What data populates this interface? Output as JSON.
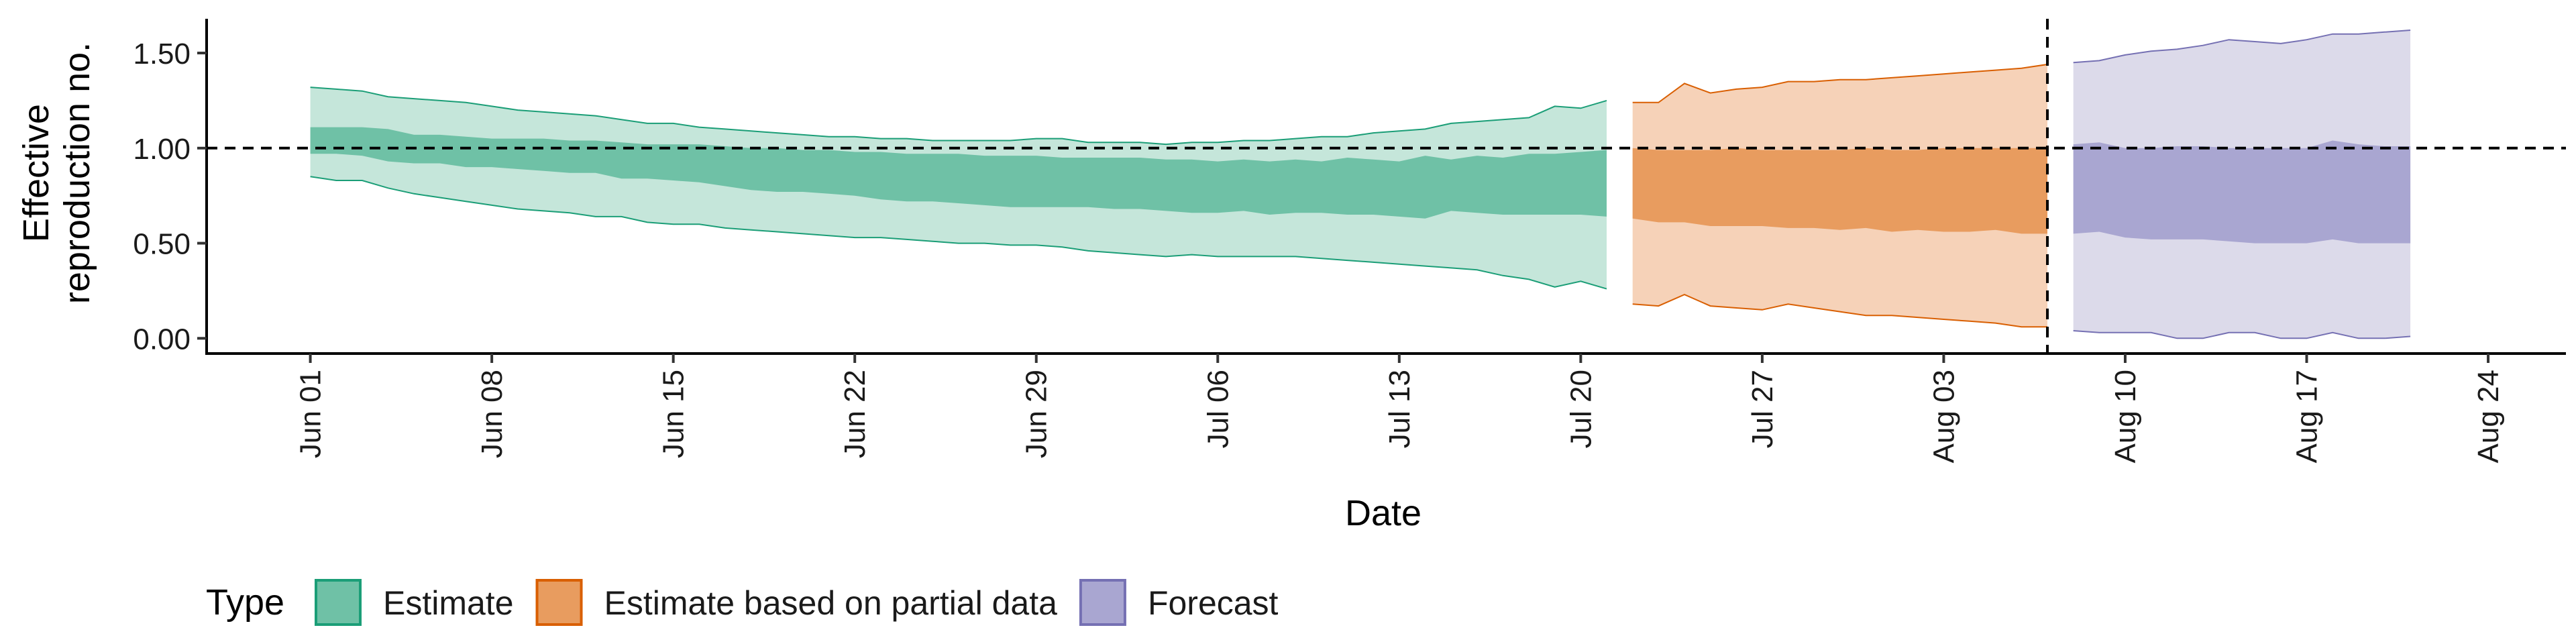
{
  "chart_data": {
    "type": "area",
    "xlabel": "Date",
    "ylabel_line1": "Effective",
    "ylabel_line2": "reproduction no.",
    "y_ticks": [
      "0.00",
      "0.50",
      "1.00",
      "1.50"
    ],
    "y_tick_values": [
      0,
      0.5,
      1.0,
      1.5
    ],
    "ylim": [
      -0.08,
      1.68
    ],
    "xlim": [
      "2020-05-28",
      "2020-08-27"
    ],
    "x_ticks": [
      "Jun 01",
      "Jun 08",
      "Jun 15",
      "Jun 22",
      "Jun 29",
      "Jul 06",
      "Jul 13",
      "Jul 20",
      "Jul 27",
      "Aug 03",
      "Aug 10",
      "Aug 17",
      "Aug 24"
    ],
    "x_tick_dates": [
      "2020-06-01",
      "2020-06-08",
      "2020-06-15",
      "2020-06-22",
      "2020-06-29",
      "2020-07-06",
      "2020-07-13",
      "2020-07-20",
      "2020-07-27",
      "2020-08-03",
      "2020-08-10",
      "2020-08-17",
      "2020-08-24"
    ],
    "reference_hline": 1.0,
    "reference_vline": "2020-08-07",
    "grid": false,
    "legend_placement": "bottom-left",
    "legend_title": "Type",
    "series": [
      {
        "name": "Estimate",
        "color": "#1b9e77",
        "fill_inner": "#6fc1a6",
        "fill_outer": "#c5e6da",
        "x": [
          "2020-06-01",
          "2020-06-02",
          "2020-06-03",
          "2020-06-04",
          "2020-06-05",
          "2020-06-06",
          "2020-06-07",
          "2020-06-08",
          "2020-06-09",
          "2020-06-10",
          "2020-06-11",
          "2020-06-12",
          "2020-06-13",
          "2020-06-14",
          "2020-06-15",
          "2020-06-16",
          "2020-06-17",
          "2020-06-18",
          "2020-06-19",
          "2020-06-20",
          "2020-06-21",
          "2020-06-22",
          "2020-06-23",
          "2020-06-24",
          "2020-06-25",
          "2020-06-26",
          "2020-06-27",
          "2020-06-28",
          "2020-06-29",
          "2020-06-30",
          "2020-07-01",
          "2020-07-02",
          "2020-07-03",
          "2020-07-04",
          "2020-07-05",
          "2020-07-06",
          "2020-07-07",
          "2020-07-08",
          "2020-07-09",
          "2020-07-10",
          "2020-07-11",
          "2020-07-12",
          "2020-07-13",
          "2020-07-14",
          "2020-07-15",
          "2020-07-16",
          "2020-07-17",
          "2020-07-18",
          "2020-07-19",
          "2020-07-20",
          "2020-07-21"
        ],
        "lower90": [
          0.85,
          0.83,
          0.83,
          0.79,
          0.76,
          0.74,
          0.72,
          0.7,
          0.68,
          0.67,
          0.66,
          0.64,
          0.64,
          0.61,
          0.6,
          0.6,
          0.58,
          0.57,
          0.56,
          0.55,
          0.54,
          0.53,
          0.53,
          0.52,
          0.51,
          0.5,
          0.5,
          0.49,
          0.49,
          0.48,
          0.46,
          0.45,
          0.44,
          0.43,
          0.44,
          0.43,
          0.43,
          0.43,
          0.43,
          0.42,
          0.41,
          0.4,
          0.39,
          0.38,
          0.37,
          0.36,
          0.33,
          0.31,
          0.27,
          0.3,
          0.26
        ],
        "lower50": [
          0.97,
          0.97,
          0.96,
          0.93,
          0.92,
          0.92,
          0.9,
          0.9,
          0.89,
          0.88,
          0.87,
          0.87,
          0.84,
          0.84,
          0.83,
          0.82,
          0.8,
          0.78,
          0.77,
          0.77,
          0.76,
          0.75,
          0.73,
          0.72,
          0.72,
          0.71,
          0.7,
          0.69,
          0.69,
          0.69,
          0.69,
          0.68,
          0.68,
          0.67,
          0.66,
          0.66,
          0.67,
          0.65,
          0.66,
          0.66,
          0.65,
          0.65,
          0.64,
          0.63,
          0.67,
          0.66,
          0.65,
          0.65,
          0.65,
          0.65,
          0.64
        ],
        "upper50": [
          1.11,
          1.11,
          1.11,
          1.1,
          1.07,
          1.07,
          1.06,
          1.05,
          1.05,
          1.05,
          1.04,
          1.04,
          1.03,
          1.02,
          1.02,
          1.02,
          1.01,
          1.0,
          1.0,
          0.99,
          0.99,
          0.98,
          0.98,
          0.97,
          0.97,
          0.97,
          0.96,
          0.96,
          0.96,
          0.95,
          0.95,
          0.95,
          0.95,
          0.94,
          0.94,
          0.93,
          0.94,
          0.93,
          0.94,
          0.93,
          0.95,
          0.94,
          0.93,
          0.96,
          0.94,
          0.96,
          0.95,
          0.97,
          0.97,
          0.98,
          0.99
        ],
        "upper90": [
          1.32,
          1.31,
          1.3,
          1.27,
          1.26,
          1.25,
          1.24,
          1.22,
          1.2,
          1.19,
          1.18,
          1.17,
          1.15,
          1.13,
          1.13,
          1.11,
          1.1,
          1.09,
          1.08,
          1.07,
          1.06,
          1.06,
          1.05,
          1.05,
          1.04,
          1.04,
          1.04,
          1.04,
          1.05,
          1.05,
          1.03,
          1.03,
          1.03,
          1.02,
          1.03,
          1.03,
          1.04,
          1.04,
          1.05,
          1.06,
          1.06,
          1.08,
          1.09,
          1.1,
          1.13,
          1.14,
          1.15,
          1.16,
          1.22,
          1.21,
          1.25
        ]
      },
      {
        "name": "Estimate based on partial data",
        "color": "#d95f02",
        "fill_inner": "#e89c5f",
        "fill_outer": "#f6d2b8",
        "x": [
          "2020-07-22",
          "2020-07-23",
          "2020-07-24",
          "2020-07-25",
          "2020-07-26",
          "2020-07-27",
          "2020-07-28",
          "2020-07-29",
          "2020-07-30",
          "2020-07-31",
          "2020-08-01",
          "2020-08-02",
          "2020-08-03",
          "2020-08-04",
          "2020-08-05",
          "2020-08-06",
          "2020-08-07"
        ],
        "lower90": [
          0.18,
          0.17,
          0.23,
          0.17,
          0.16,
          0.15,
          0.18,
          0.16,
          0.14,
          0.12,
          0.12,
          0.11,
          0.1,
          0.09,
          0.08,
          0.06,
          0.06
        ],
        "lower50": [
          0.63,
          0.61,
          0.61,
          0.59,
          0.59,
          0.59,
          0.58,
          0.58,
          0.57,
          0.58,
          0.56,
          0.57,
          0.56,
          0.56,
          0.57,
          0.55,
          0.55
        ],
        "upper50": [
          1.0,
          0.99,
          0.99,
          0.99,
          1.0,
          0.99,
          0.99,
          0.99,
          0.99,
          1.0,
          0.99,
          0.99,
          1.0,
          1.0,
          1.0,
          1.0,
          1.0
        ],
        "upper90": [
          1.24,
          1.24,
          1.34,
          1.29,
          1.31,
          1.32,
          1.35,
          1.35,
          1.36,
          1.36,
          1.37,
          1.38,
          1.39,
          1.4,
          1.41,
          1.42,
          1.44
        ]
      },
      {
        "name": "Forecast",
        "color": "#7570b3",
        "fill_inner": "#a9a6d1",
        "fill_outer": "#dcdaea",
        "x": [
          "2020-08-08",
          "2020-08-09",
          "2020-08-10",
          "2020-08-11",
          "2020-08-12",
          "2020-08-13",
          "2020-08-14",
          "2020-08-15",
          "2020-08-16",
          "2020-08-17",
          "2020-08-18",
          "2020-08-19",
          "2020-08-20",
          "2020-08-21"
        ],
        "lower90": [
          0.04,
          0.03,
          0.03,
          0.03,
          0.0,
          0.0,
          0.03,
          0.03,
          0.0,
          0.0,
          0.03,
          0.0,
          0.0,
          0.01
        ],
        "lower50": [
          0.55,
          0.56,
          0.53,
          0.52,
          0.52,
          0.52,
          0.51,
          0.5,
          0.5,
          0.5,
          0.52,
          0.5,
          0.5,
          0.5
        ],
        "upper50": [
          1.02,
          1.03,
          1.0,
          1.0,
          1.01,
          1.01,
          1.0,
          1.0,
          1.0,
          1.0,
          1.04,
          1.02,
          1.01,
          1.01
        ],
        "upper90": [
          1.45,
          1.46,
          1.49,
          1.51,
          1.52,
          1.54,
          1.57,
          1.56,
          1.55,
          1.57,
          1.6,
          1.6,
          1.61,
          1.62
        ]
      }
    ]
  }
}
